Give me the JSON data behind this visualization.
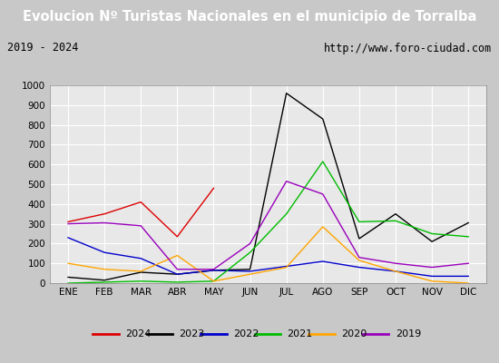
{
  "title": "Evolucion Nº Turistas Nacionales en el municipio de Torralba",
  "subtitle_left": "2019 - 2024",
  "subtitle_right": "http://www.foro-ciudad.com",
  "title_bg_color": "#5b9bd5",
  "subtitle_bg_color": "#dcdcdc",
  "plot_bg_color": "#e8e8e8",
  "fig_bg_color": "#c8c8c8",
  "months": [
    "ENE",
    "FEB",
    "MAR",
    "ABR",
    "MAY",
    "JUN",
    "JUL",
    "AGO",
    "SEP",
    "OCT",
    "NOV",
    "DIC"
  ],
  "ylim": [
    0,
    1000
  ],
  "yticks": [
    0,
    100,
    200,
    300,
    400,
    500,
    600,
    700,
    800,
    900,
    1000
  ],
  "series": {
    "2024": {
      "color": "#dd0000",
      "data": [
        310,
        350,
        410,
        235,
        480,
        null,
        null,
        null,
        null,
        null,
        null,
        null
      ]
    },
    "2023": {
      "color": "#000000",
      "data": [
        30,
        15,
        55,
        45,
        65,
        70,
        960,
        830,
        225,
        350,
        210,
        305
      ]
    },
    "2022": {
      "color": "#0000cc",
      "data": [
        230,
        155,
        125,
        45,
        65,
        60,
        85,
        110,
        80,
        60,
        35,
        35
      ]
    },
    "2021": {
      "color": "#00bb00",
      "data": [
        0,
        5,
        10,
        5,
        10,
        155,
        350,
        615,
        310,
        315,
        250,
        235
      ]
    },
    "2020": {
      "color": "#ffa500",
      "data": [
        100,
        70,
        60,
        140,
        10,
        45,
        80,
        285,
        115,
        60,
        10,
        0
      ]
    },
    "2019": {
      "color": "#9900bb",
      "data": [
        300,
        305,
        290,
        70,
        70,
        200,
        515,
        450,
        130,
        100,
        80,
        100
      ]
    }
  }
}
